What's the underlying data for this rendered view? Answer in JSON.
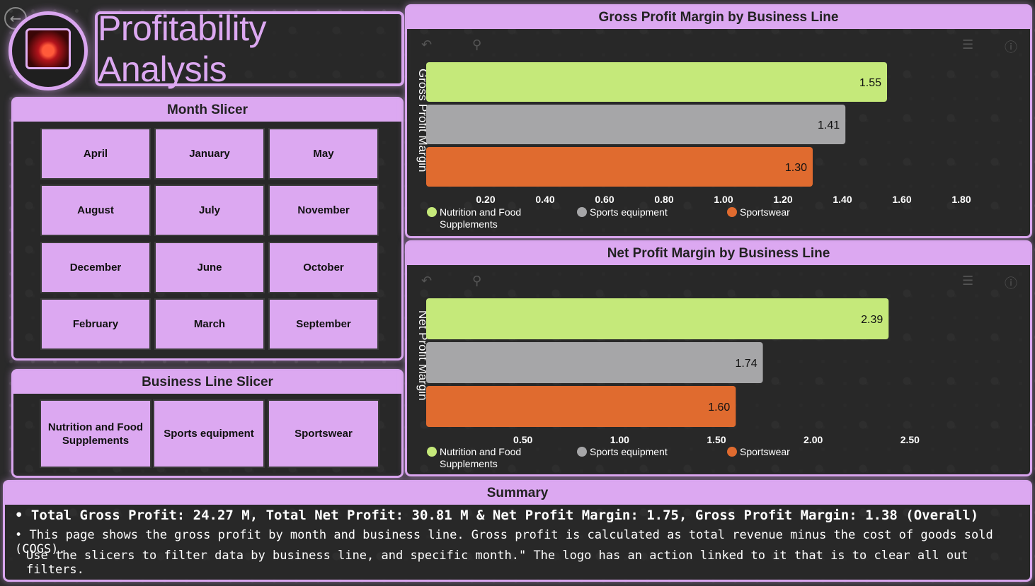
{
  "header": {
    "title": "Profitability Analysis",
    "back_icon": "back-arrow-icon",
    "logo_icon": "company-logo-icon"
  },
  "month_slicer": {
    "title": "Month Slicer",
    "items": [
      "April",
      "January",
      "May",
      "August",
      "July",
      "November",
      "December",
      "June",
      "October",
      "February",
      "March",
      "September"
    ]
  },
  "business_line_slicer": {
    "title": "Business Line Slicer",
    "items": [
      "Nutrition and Food Supplements",
      "Sports equipment",
      "Sportswear"
    ]
  },
  "colors": {
    "accent": "#dca8f1",
    "nutrition": "#c5e97a",
    "sports_equipment": "#a6a6a8",
    "sportswear": "#e06b2f"
  },
  "chart_data": [
    {
      "type": "bar",
      "orientation": "horizontal",
      "title": "Gross Profit Margin by Business Line",
      "ylabel": "Gross Profit Margin",
      "categories": [
        "Nutrition and Food Supplements",
        "Sports equipment",
        "Sportswear"
      ],
      "values": [
        1.55,
        1.41,
        1.3
      ],
      "value_labels": [
        "1.55",
        "1.41",
        "1.30"
      ],
      "xlim": [
        0,
        1.9
      ],
      "xticks": [
        0.2,
        0.4,
        0.6,
        0.8,
        1.0,
        1.2,
        1.4,
        1.6,
        1.8
      ],
      "xtick_labels": [
        "0.20",
        "0.40",
        "0.60",
        "0.80",
        "1.00",
        "1.20",
        "1.40",
        "1.60",
        "1.80"
      ],
      "legend": [
        "Nutrition and Food Supplements",
        "Sports equipment",
        "Sportswear"
      ],
      "legend_placement": "bottom"
    },
    {
      "type": "bar",
      "orientation": "horizontal",
      "title": "Net Profit Margin by Business Line",
      "ylabel": "Net Profit Margin",
      "categories": [
        "Nutrition and Food Supplements",
        "Sports equipment",
        "Sportswear"
      ],
      "values": [
        2.39,
        1.74,
        1.6
      ],
      "value_labels": [
        "2.39",
        "1.74",
        "1.60"
      ],
      "xlim": [
        0,
        3.0
      ],
      "xticks": [
        0.5,
        1.0,
        1.5,
        2.0,
        2.5
      ],
      "xtick_labels": [
        "0.50",
        "1.00",
        "1.50",
        "2.00",
        "2.50"
      ],
      "legend": [
        "Nutrition and Food Supplements",
        "Sports equipment",
        "Sportswear"
      ],
      "legend_placement": "bottom"
    }
  ],
  "summary": {
    "title": "Summary",
    "line1": "• Total Gross Profit: 24.27 M, Total Net Profit: 30.81 M  &  Net Profit Margin: 1.75, Gross Profit Margin: 1.38 (Overall)",
    "line2": "• This page shows the gross profit by month and business line. Gross profit is calculated as total revenue minus the cost of goods sold (COGS).",
    "line3": "Use the slicers to filter data by business line, and specific month.\" The logo has an action linked to it that is to clear all out filters."
  }
}
